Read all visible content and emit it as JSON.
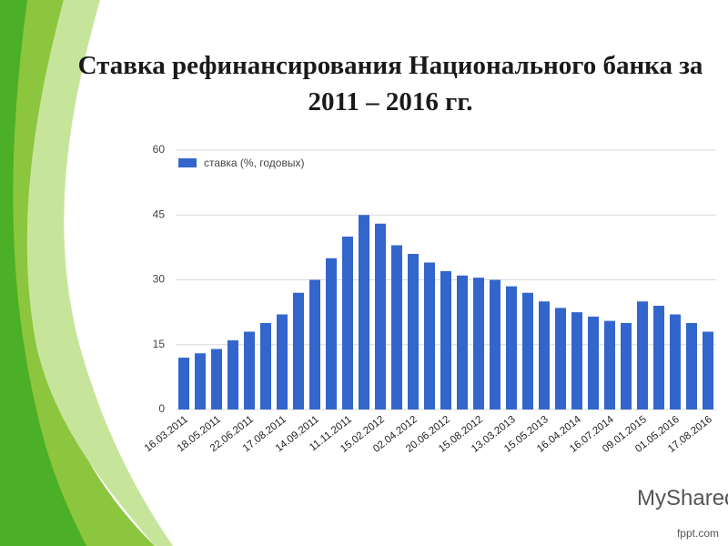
{
  "chart_data": {
    "type": "bar",
    "title": "Ставка рефинансирования Национального банка за 2011 – 2016 гг.",
    "categories": [
      "16.03.2011",
      null,
      "18.05.2011",
      null,
      "22.06.2011",
      null,
      "17.08.2011",
      null,
      "14.09.2011",
      null,
      "11.11.2011",
      null,
      "15.02.2012",
      null,
      "02.04.2012",
      null,
      "20.06.2012",
      null,
      "15.08.2012",
      null,
      "13.03.2013",
      null,
      "15.05.2013",
      null,
      "16.04.2014",
      null,
      "16.07.2014",
      null,
      "09.01.2015",
      null,
      "01.05.2016",
      null,
      "17.08.2016"
    ],
    "series": [
      {
        "name": "ставка (%, годовых)",
        "color": "#3366cc",
        "values": [
          12,
          13,
          14,
          16,
          18,
          20,
          22,
          27,
          30,
          35,
          40,
          45,
          43,
          38,
          36,
          34,
          32,
          31,
          30.5,
          30,
          28.5,
          27,
          25,
          23.5,
          22.5,
          21.5,
          20.5,
          20,
          25,
          24,
          22,
          20,
          18
        ]
      }
    ],
    "ylim": [
      0,
      60
    ],
    "yticks": [
      0,
      15,
      30,
      45,
      60
    ],
    "grid": true,
    "legend": "top-left"
  },
  "watermark": "MyShared",
  "footer": "fppt.com"
}
